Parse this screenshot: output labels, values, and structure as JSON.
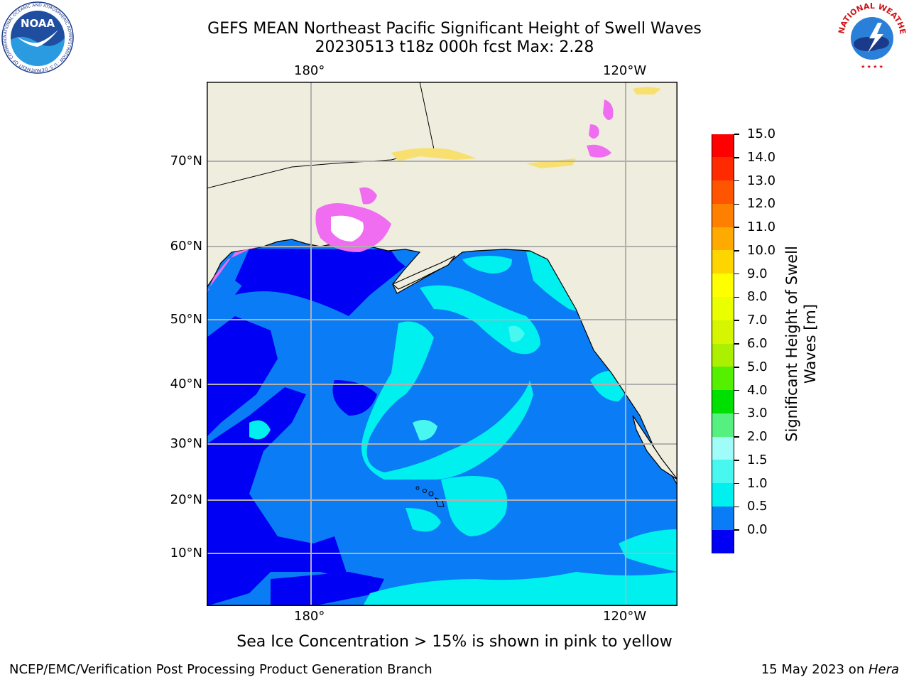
{
  "header": {
    "title_line1": "GEFS MEAN Northeast Pacific Significant Height of Swell Waves",
    "title_line2": "20230513 t18z 000h fcst   Max: 2.28",
    "left_logo_text": "NOAA",
    "left_logo_ring": "NATIONAL OCEANIC AND ATMOSPHERIC ADMINISTRATION · U.S. DEPARTMENT OF COMMERCE",
    "right_logo_ring": "NATIONAL WEATHER SERVICE"
  },
  "map": {
    "lon_labels_top": [
      "180°",
      "120°W"
    ],
    "lon_labels_bottom": [
      "180°",
      "120°W"
    ],
    "lat_labels": [
      "70°N",
      "60°N",
      "50°N",
      "40°N",
      "30°N",
      "20°N",
      "10°N"
    ],
    "colors": {
      "land": "#efedde",
      "ocean_deep": "#0000f5",
      "ocean_mid": "#0a7cf5",
      "ocean_cyan": "#00f0f0",
      "ocean_light": "#48f8f0",
      "ice_pink": "#f06cf0",
      "ice_yellow": "#f8e070",
      "grid": "#b0b0b0"
    }
  },
  "colorbar": {
    "label": "Significant Height of Swell Waves [m]",
    "ticks": [
      "15.0",
      "14.0",
      "13.0",
      "12.0",
      "11.0",
      "10.0",
      "9.0",
      "8.0",
      "7.0",
      "6.0",
      "5.0",
      "4.0",
      "3.0",
      "2.0",
      "1.5",
      "1.0",
      "0.5",
      "0.0"
    ],
    "colors_top_to_bottom": [
      "#ff0000",
      "#ff2a00",
      "#ff5500",
      "#ff8000",
      "#ffaa00",
      "#ffd500",
      "#ffff00",
      "#eaff00",
      "#d5f500",
      "#aaf000",
      "#55f000",
      "#00e000",
      "#55f080",
      "#a0fcf8",
      "#48f8f0",
      "#00f0f0",
      "#0a7cf5",
      "#0000f5"
    ]
  },
  "notes": {
    "ice_note": "Sea Ice Concentration > 15% is shown in pink to yellow"
  },
  "footer": {
    "left": "NCEP/EMC/Verification Post Processing Product Generation Branch",
    "right_prefix": "15 May 2023 on ",
    "right_italic": "Hera"
  }
}
